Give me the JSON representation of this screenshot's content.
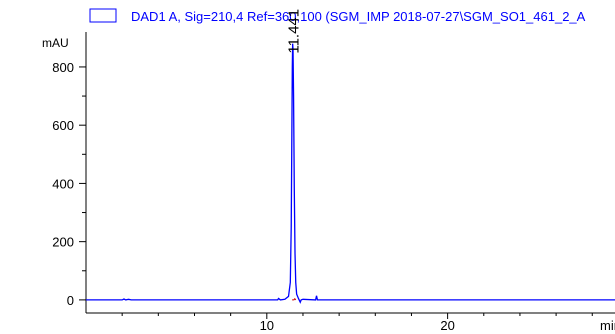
{
  "chart_data": {
    "type": "line",
    "legend": {
      "label": "DAD1 A, Sig=210,4 Ref=360,100 (SGM_IMP 2018-07-27\\SGM_SO1_461_2_A",
      "placement": "top"
    },
    "ylabel": "mAU",
    "xlabel": "min",
    "xlim": [
      0,
      29.7
    ],
    "ylim": [
      -45,
      920
    ],
    "x_ticks": [
      10,
      20
    ],
    "y_ticks": [
      0,
      200,
      400,
      600,
      800
    ],
    "grid": false,
    "series": [
      {
        "color": "#0000ff",
        "points": [
          [
            0,
            0
          ],
          [
            2.0,
            0
          ],
          [
            2.1,
            3
          ],
          [
            2.2,
            0
          ],
          [
            2.35,
            2
          ],
          [
            2.5,
            0
          ],
          [
            10.6,
            0
          ],
          [
            10.65,
            5
          ],
          [
            10.75,
            0
          ],
          [
            11.0,
            2
          ],
          [
            11.2,
            12
          ],
          [
            11.3,
            60
          ],
          [
            11.35,
            250
          ],
          [
            11.38,
            520
          ],
          [
            11.41,
            800
          ],
          [
            11.43,
            880
          ],
          [
            11.45,
            860
          ],
          [
            11.48,
            700
          ],
          [
            11.52,
            380
          ],
          [
            11.56,
            160
          ],
          [
            11.6,
            60
          ],
          [
            11.65,
            20
          ],
          [
            11.75,
            5
          ],
          [
            11.85,
            -8
          ],
          [
            11.9,
            0
          ],
          [
            12.0,
            2
          ],
          [
            12.7,
            0
          ],
          [
            12.75,
            14
          ],
          [
            12.8,
            0
          ],
          [
            29.7,
            0
          ]
        ]
      },
      {
        "color": "#cc0000",
        "points": [
          [
            11.4,
            0
          ],
          [
            11.5,
            0
          ],
          [
            11.55,
            4
          ],
          [
            11.6,
            0
          ]
        ]
      }
    ],
    "peak_labels": [
      {
        "x": 11.43,
        "y": 880,
        "text": "11.441"
      }
    ],
    "colors": {
      "frame": "#000000",
      "legend_border": "#0000ff",
      "legend_text": "#0000ff"
    }
  }
}
